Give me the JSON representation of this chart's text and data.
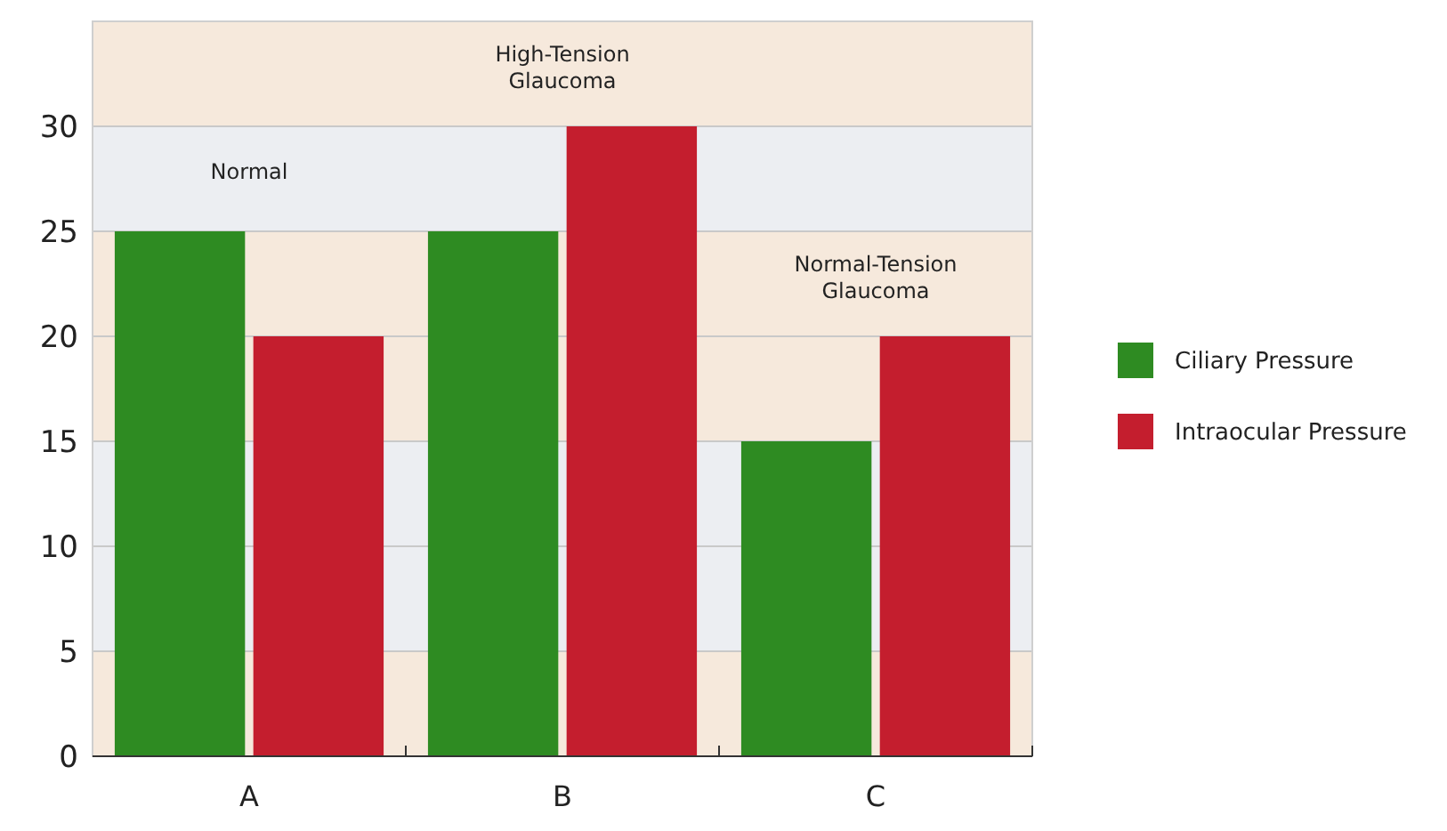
{
  "chart_data": {
    "type": "bar",
    "categories": [
      "A",
      "B",
      "C"
    ],
    "series": [
      {
        "name": "Ciliary Pressure",
        "color": "#2e8b22",
        "values": [
          25,
          25,
          15
        ]
      },
      {
        "name": "Intraocular Pressure",
        "color": "#c41e2e",
        "values": [
          20,
          30,
          20
        ]
      }
    ],
    "ylim": [
      0,
      35
    ],
    "yticks": [
      0,
      5,
      10,
      15,
      20,
      25,
      30
    ],
    "grid": "y",
    "legend": "right",
    "bands": [
      {
        "axis": "y",
        "from": 0,
        "to": 5,
        "color": "#f6e9dc"
      },
      {
        "axis": "y",
        "from": 5,
        "to": 10,
        "color": "#eceef2"
      },
      {
        "axis": "y",
        "from": 10,
        "to": 15,
        "color": "#eceef2"
      },
      {
        "axis": "y",
        "from": 15,
        "to": 20,
        "color": "#f6e9dc"
      },
      {
        "axis": "y",
        "from": 20,
        "to": 25,
        "color": "#f6e9dc",
        "label": "Normal-Tension Glaucoma"
      },
      {
        "axis": "y",
        "from": 25,
        "to": 30,
        "color": "#eceef2",
        "label": "Normal"
      },
      {
        "axis": "y",
        "from": 30,
        "to": 35,
        "color": "#f6e9dc",
        "label": "High-Tension Glaucoma"
      }
    ]
  }
}
